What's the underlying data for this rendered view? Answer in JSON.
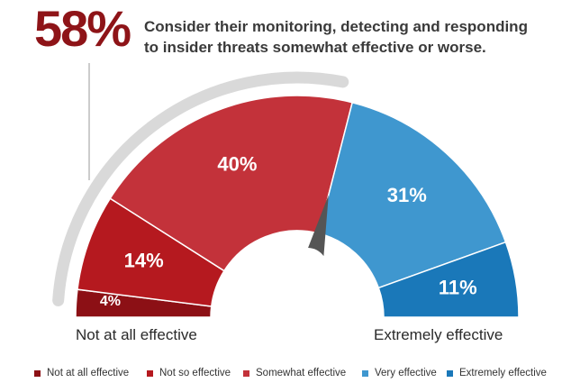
{
  "headline": {
    "stat": "58%",
    "text_line1": "Consider their monitoring, detecting and responding",
    "text_line2": "to insider threats somewhat effective or worse."
  },
  "labels": {
    "left_end": "Not at all effective",
    "right_end": "Extremely effective"
  },
  "colors": {
    "stat": "#8e1418",
    "track": "#d9d9d9",
    "needle": "#555555"
  },
  "chart_data": {
    "type": "pie",
    "subtype": "semicircle-gauge",
    "categories": [
      "Not at all effective",
      "Not so effective",
      "Somewhat effective",
      "Very effective",
      "Extremely effective"
    ],
    "values": [
      4,
      14,
      40,
      31,
      11
    ],
    "value_labels": [
      "4%",
      "14%",
      "40%",
      "31%",
      "11%"
    ],
    "colors": [
      "#8c1015",
      "#b5191f",
      "#c3323a",
      "#3f97cf",
      "#1a78b9"
    ],
    "needle_value": 58,
    "legend_position": "bottom"
  }
}
